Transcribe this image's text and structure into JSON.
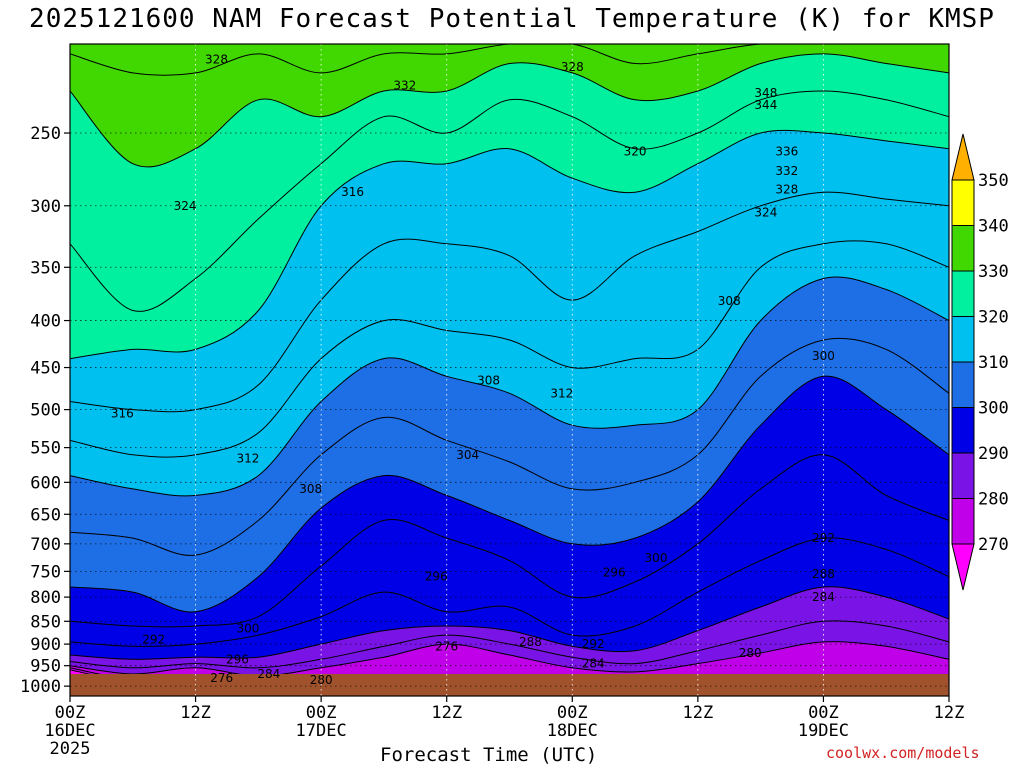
{
  "title": "2025121600 NAM Forecast Potential Temperature (K) for KMSP",
  "credit": "coolwx.com/models",
  "chart_data": {
    "type": "heatmap",
    "title": "2025121600 NAM Forecast Potential Temperature (K) for KMSP",
    "xlabel": "Forecast Time (UTC)",
    "ylabel": "",
    "x_ticks": [
      {
        "hour": 0,
        "label": "00Z",
        "sub": "16DEC",
        "sub2": "2025"
      },
      {
        "hour": 12,
        "label": "12Z",
        "sub": "",
        "sub2": ""
      },
      {
        "hour": 24,
        "label": "00Z",
        "sub": "17DEC",
        "sub2": ""
      },
      {
        "hour": 36,
        "label": "12Z",
        "sub": "",
        "sub2": ""
      },
      {
        "hour": 48,
        "label": "00Z",
        "sub": "18DEC",
        "sub2": ""
      },
      {
        "hour": 60,
        "label": "12Z",
        "sub": "",
        "sub2": ""
      },
      {
        "hour": 72,
        "label": "00Z",
        "sub": "19DEC",
        "sub2": ""
      },
      {
        "hour": 84,
        "label": "12Z",
        "sub": "",
        "sub2": ""
      }
    ],
    "y_ticks": [
      250,
      300,
      350,
      400,
      450,
      500,
      550,
      600,
      650,
      700,
      750,
      800,
      850,
      900,
      950,
      1000
    ],
    "xlim_hours": [
      0,
      84
    ],
    "ylim_hpa": [
      200,
      1025
    ],
    "y_scale": "log",
    "grid": true,
    "colorbar": {
      "levels": [
        270,
        280,
        290,
        300,
        310,
        320,
        330,
        340,
        350
      ],
      "colors": [
        "#ff00ff",
        "#c000e8",
        "#7a14e6",
        "#0000e6",
        "#1e6ee6",
        "#00c0f0",
        "#00f0a0",
        "#40d800",
        "#ffff00",
        "#ffb000"
      ],
      "extend": "both"
    },
    "terrain_color": "#a0522d",
    "surface_pressure_hpa": 970,
    "sounding_times": [
      0,
      6,
      12,
      18,
      24,
      30,
      36,
      42,
      48,
      54,
      60,
      66,
      72,
      78,
      84
    ],
    "isentropes": [
      {
        "theta": 270,
        "p": [
          960,
          990,
          990,
          990,
          990,
          990,
          990,
          990,
          990,
          990,
          990,
          990,
          990,
          990,
          990
        ]
      },
      {
        "theta": 276,
        "p": [
          955,
          985,
          990,
          990,
          990,
          990,
          990,
          990,
          990,
          990,
          990,
          990,
          990,
          990,
          990
        ]
      },
      {
        "theta": 280,
        "p": [
          950,
          970,
          955,
          975,
          955,
          930,
          900,
          925,
          955,
          965,
          945,
          920,
          895,
          905,
          935
        ]
      },
      {
        "theta": 284,
        "p": [
          940,
          955,
          945,
          955,
          935,
          905,
          880,
          900,
          930,
          945,
          915,
          880,
          850,
          860,
          895
        ]
      },
      {
        "theta": 288,
        "p": [
          925,
          935,
          930,
          930,
          900,
          870,
          860,
          870,
          905,
          915,
          870,
          820,
          780,
          800,
          845
        ]
      },
      {
        "theta": 292,
        "p": [
          895,
          905,
          900,
          880,
          840,
          790,
          830,
          820,
          880,
          860,
          790,
          730,
          690,
          710,
          760
        ]
      },
      {
        "theta": 296,
        "p": [
          850,
          860,
          860,
          840,
          740,
          660,
          690,
          730,
          800,
          770,
          700,
          610,
          560,
          620,
          660
        ]
      },
      {
        "theta": 300,
        "p": [
          780,
          790,
          830,
          760,
          640,
          590,
          620,
          660,
          700,
          690,
          630,
          520,
          460,
          500,
          560
        ]
      },
      {
        "theta": 304,
        "p": [
          680,
          690,
          720,
          660,
          560,
          510,
          540,
          570,
          610,
          600,
          560,
          460,
          420,
          430,
          480
        ]
      },
      {
        "theta": 308,
        "p": [
          590,
          610,
          620,
          590,
          490,
          440,
          460,
          480,
          520,
          520,
          500,
          400,
          360,
          370,
          400
        ]
      },
      {
        "theta": 312,
        "p": [
          540,
          560,
          560,
          530,
          440,
          400,
          410,
          420,
          450,
          440,
          430,
          350,
          330,
          330,
          350
        ]
      },
      {
        "theta": 316,
        "p": [
          490,
          500,
          500,
          470,
          380,
          330,
          330,
          340,
          380,
          340,
          320,
          300,
          290,
          295,
          300
        ]
      },
      {
        "theta": 320,
        "p": [
          440,
          430,
          430,
          390,
          300,
          270,
          270,
          260,
          280,
          290,
          270,
          250,
          250,
          255,
          260
        ]
      },
      {
        "theta": 324,
        "p": [
          330,
          390,
          360,
          310,
          270,
          240,
          250,
          230,
          240,
          260,
          250,
          230,
          225,
          230,
          240
        ]
      },
      {
        "theta": 328,
        "p": [
          225,
          270,
          260,
          230,
          240,
          225,
          225,
          210,
          215,
          230,
          225,
          210,
          205,
          210,
          215
        ]
      },
      {
        "theta": 332,
        "p": [
          205,
          215,
          215,
          205,
          215,
          205,
          205,
          200,
          200,
          210,
          205,
          200,
          200,
          200,
          200
        ]
      },
      {
        "theta": 336,
        "p": [
          200,
          200,
          200,
          200,
          200,
          200,
          200,
          200,
          200,
          200,
          200,
          200,
          200,
          200,
          200
        ]
      }
    ],
    "contour_labels": [
      {
        "text": "328",
        "hour": 14,
        "p": 208
      },
      {
        "text": "332",
        "hour": 32,
        "p": 222
      },
      {
        "text": "328",
        "hour": 48,
        "p": 212
      },
      {
        "text": "348",
        "hour": 66.5,
        "p": 226
      },
      {
        "text": "344",
        "hour": 66.5,
        "p": 233
      },
      {
        "text": "320",
        "hour": 54,
        "p": 262
      },
      {
        "text": "336",
        "hour": 68.5,
        "p": 262
      },
      {
        "text": "332",
        "hour": 68.5,
        "p": 275
      },
      {
        "text": "328",
        "hour": 68.5,
        "p": 288
      },
      {
        "text": "324",
        "hour": 66.5,
        "p": 305
      },
      {
        "text": "324",
        "hour": 11,
        "p": 300
      },
      {
        "text": "316",
        "hour": 27,
        "p": 290
      },
      {
        "text": "308",
        "hour": 63,
        "p": 381
      },
      {
        "text": "308",
        "hour": 40,
        "p": 465
      },
      {
        "text": "312",
        "hour": 47,
        "p": 480
      },
      {
        "text": "300",
        "hour": 72,
        "p": 437
      },
      {
        "text": "316",
        "hour": 5,
        "p": 505
      },
      {
        "text": "312",
        "hour": 17,
        "p": 565
      },
      {
        "text": "304",
        "hour": 38,
        "p": 560
      },
      {
        "text": "308",
        "hour": 23,
        "p": 610
      },
      {
        "text": "292",
        "hour": 72,
        "p": 690
      },
      {
        "text": "300",
        "hour": 56,
        "p": 725
      },
      {
        "text": "296",
        "hour": 52,
        "p": 752
      },
      {
        "text": "296",
        "hour": 35,
        "p": 760
      },
      {
        "text": "288",
        "hour": 72,
        "p": 755
      },
      {
        "text": "284",
        "hour": 72,
        "p": 800
      },
      {
        "text": "300",
        "hour": 17,
        "p": 865
      },
      {
        "text": "292",
        "hour": 8,
        "p": 890
      },
      {
        "text": "276",
        "hour": 36,
        "p": 905
      },
      {
        "text": "288",
        "hour": 44,
        "p": 895
      },
      {
        "text": "292",
        "hour": 50,
        "p": 900
      },
      {
        "text": "280",
        "hour": 65,
        "p": 920
      },
      {
        "text": "296",
        "hour": 16,
        "p": 935
      },
      {
        "text": "284",
        "hour": 50,
        "p": 945
      },
      {
        "text": "284",
        "hour": 19,
        "p": 970
      },
      {
        "text": "276",
        "hour": 14.5,
        "p": 980
      },
      {
        "text": "280",
        "hour": 24,
        "p": 985
      }
    ]
  }
}
